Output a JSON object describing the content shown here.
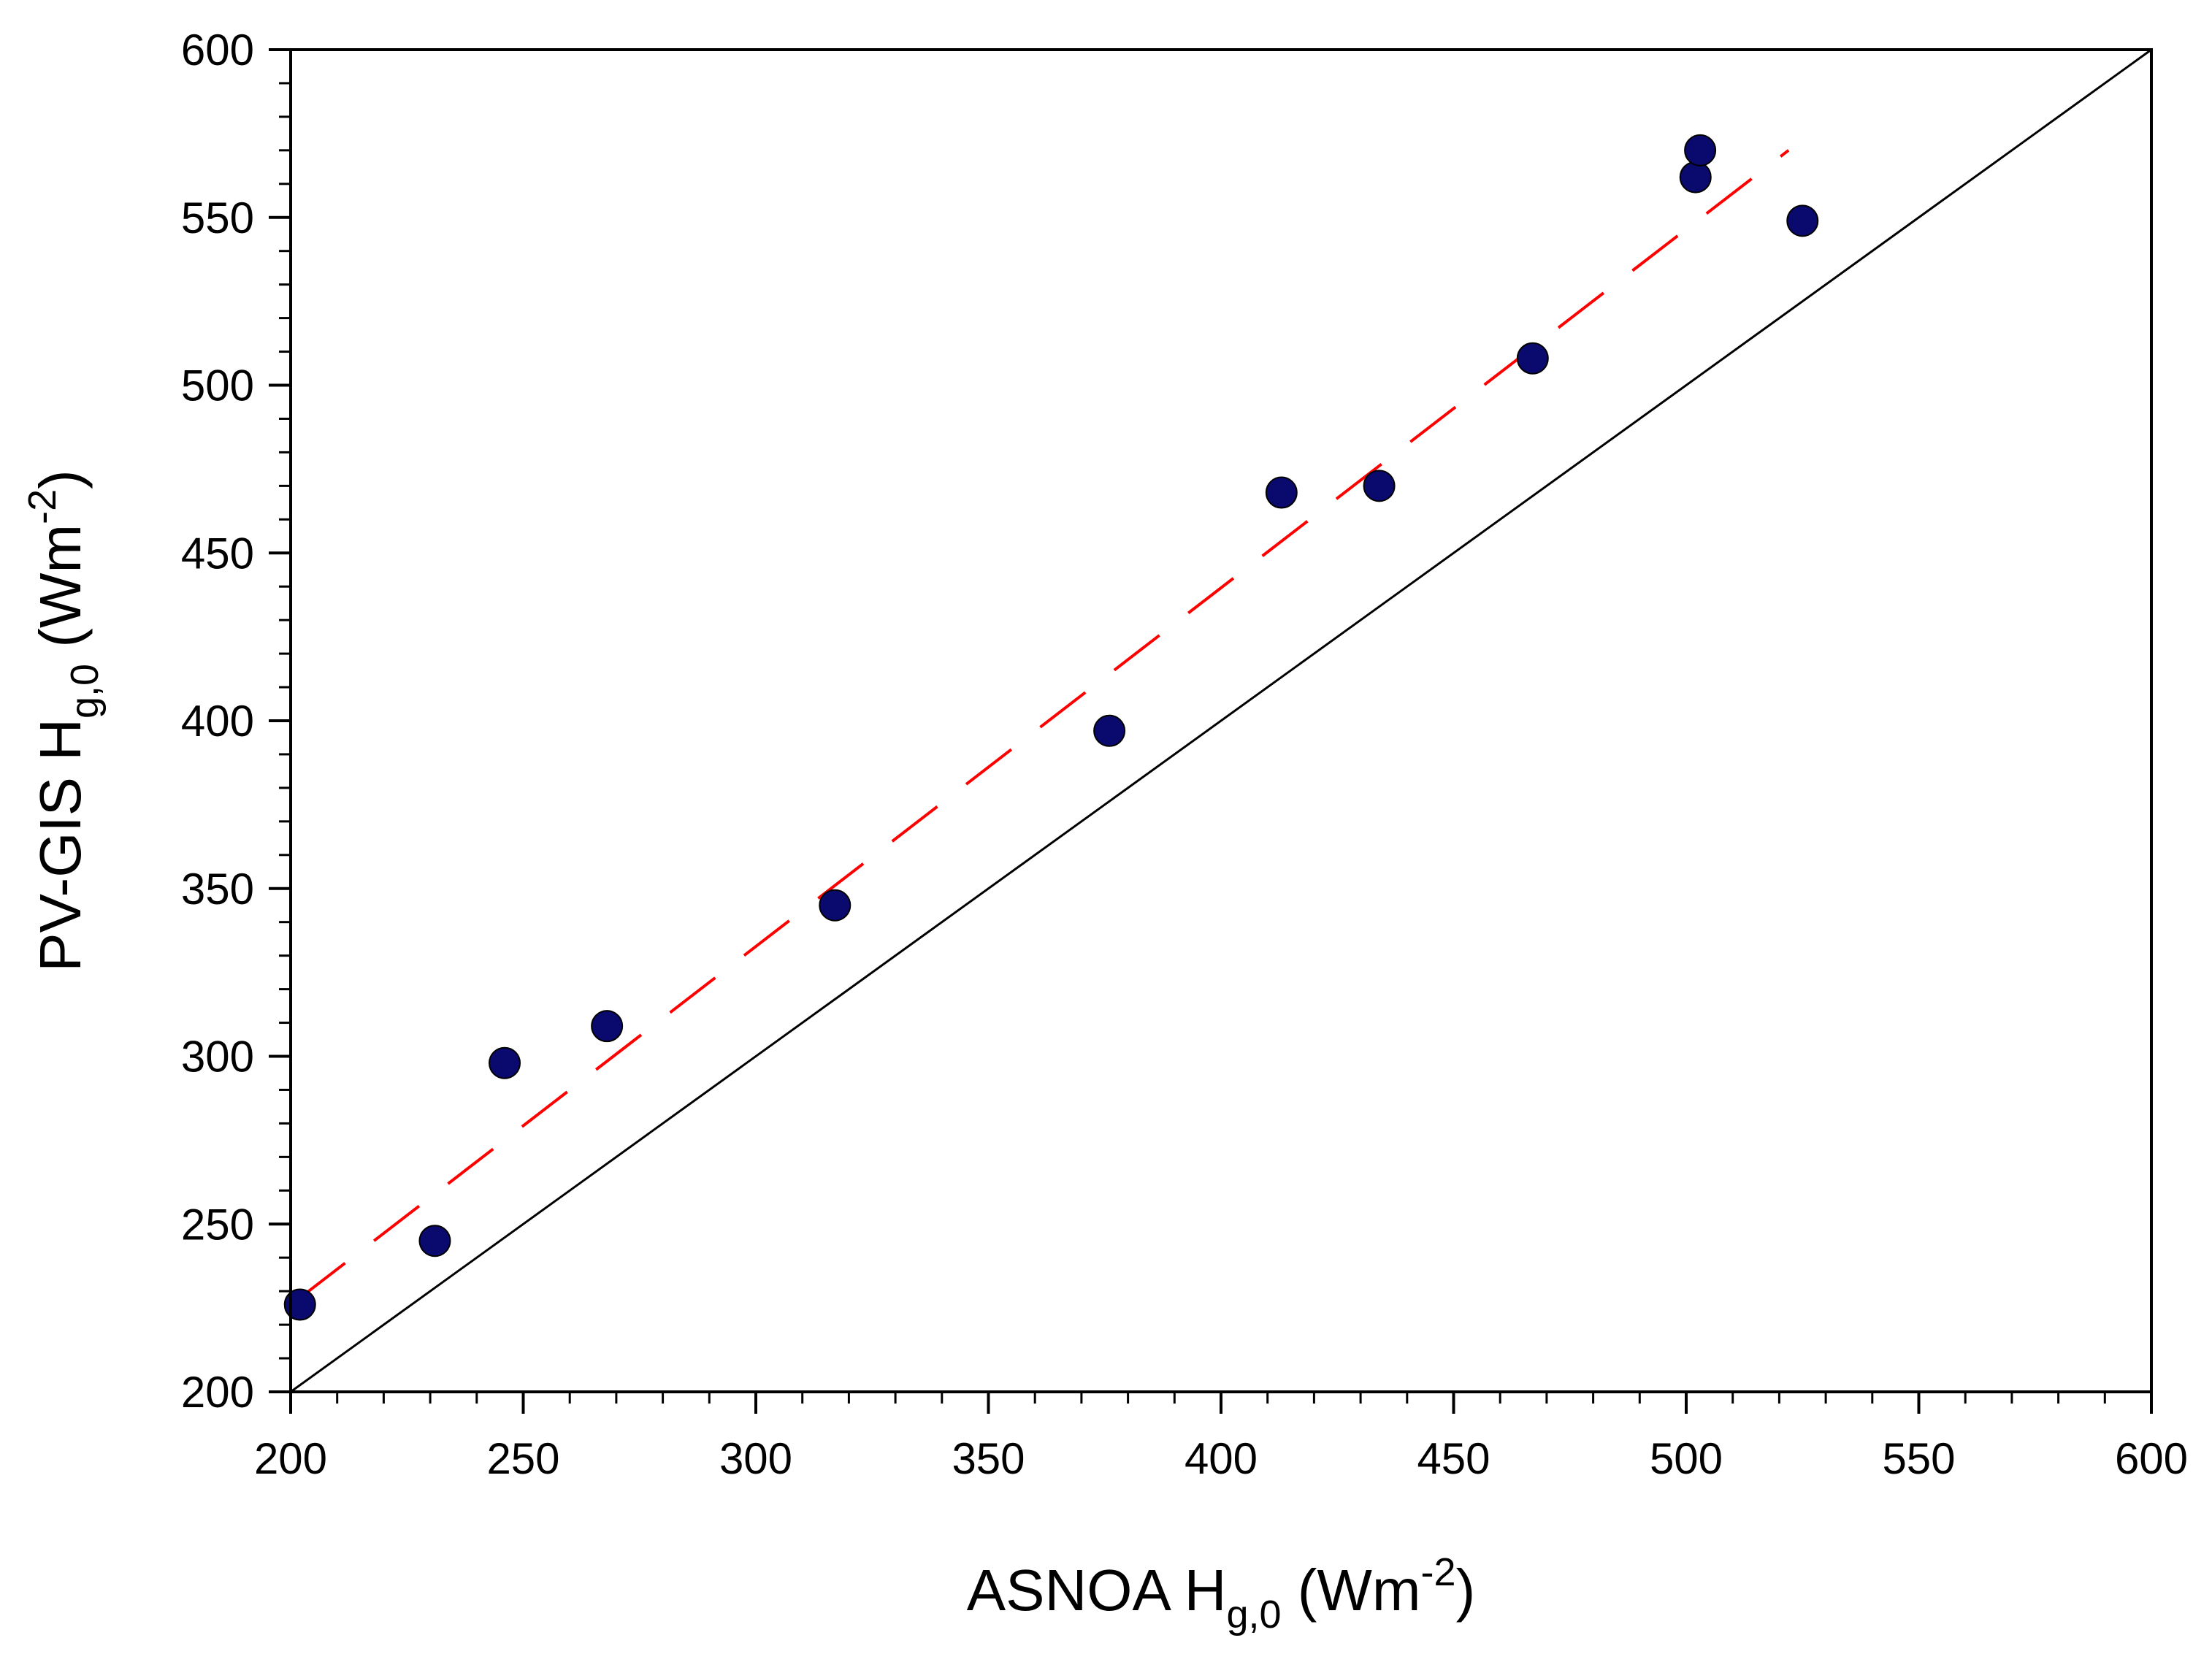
{
  "chart_data": {
    "type": "scatter",
    "title": "",
    "xlabel": {
      "base": "ASNOA H",
      "sub": "g,0",
      "unit_open": " (Wm",
      "sup": "-2",
      "unit_close": ")"
    },
    "ylabel": {
      "base": "PV-GIS H",
      "sub": "g,0",
      "unit_open": " (Wm",
      "sup": "-2",
      "unit_close": ")"
    },
    "xlim": [
      200,
      600
    ],
    "ylim": [
      200,
      600
    ],
    "xticks": [
      200,
      250,
      300,
      350,
      400,
      450,
      500,
      550,
      600
    ],
    "yticks": [
      200,
      250,
      300,
      350,
      400,
      450,
      500,
      550,
      600
    ],
    "minor_x_step": 10,
    "minor_y_step": 10,
    "grid": false,
    "series": [
      {
        "name": "data",
        "kind": "points",
        "color": "#0a0a6e",
        "x": [
          202,
          231,
          246,
          268,
          317,
          376,
          413,
          434,
          467,
          502,
          503,
          525
        ],
        "y": [
          226,
          245,
          298,
          309,
          345,
          397,
          468,
          470,
          508,
          562,
          570,
          549
        ]
      },
      {
        "name": "regression fit",
        "kind": "dashed-line",
        "color": "#ff0000",
        "x": [
          202,
          522
        ],
        "y": [
          228,
          570
        ]
      },
      {
        "name": "1:1 line",
        "kind": "solid-line",
        "color": "#000000",
        "x": [
          200,
          600
        ],
        "y": [
          200,
          600
        ]
      }
    ]
  }
}
